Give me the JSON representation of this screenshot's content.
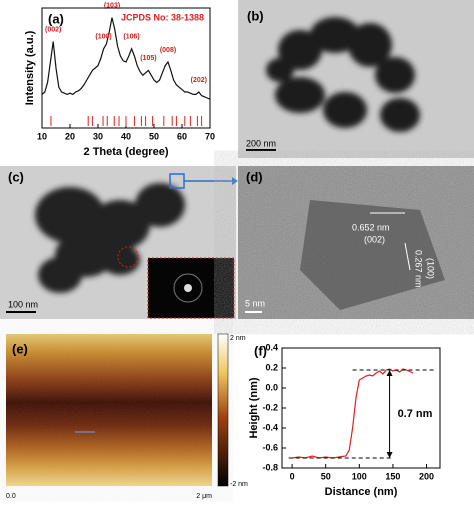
{
  "chart_data": [
    {
      "type": "line",
      "xlabel": "2 Theta (degree)",
      "ylabel": "Intensity (a.u.)",
      "annotation": "JCPDS No: 38-1388",
      "x": [
        10,
        11,
        12,
        13,
        14,
        15,
        16,
        17,
        18,
        19,
        20,
        21,
        22,
        23,
        24,
        25,
        26,
        27,
        28,
        29,
        30,
        31,
        32,
        33,
        34,
        35,
        36,
        37,
        38,
        39,
        40,
        41,
        42,
        43,
        44,
        45,
        46,
        47,
        48,
        49,
        50,
        51,
        52,
        53,
        54,
        55,
        56,
        57,
        58,
        59,
        60,
        61,
        62,
        63,
        64,
        65,
        66,
        67,
        68,
        69,
        70
      ],
      "series": [
        {
          "color": "#111111",
          "values": [
            28,
            30,
            38,
            55,
            72,
            50,
            34,
            30,
            29,
            28,
            29,
            28,
            30,
            31,
            33,
            36,
            40,
            44,
            48,
            50,
            52,
            58,
            66,
            70,
            80,
            92,
            82,
            68,
            60,
            56,
            55,
            60,
            66,
            60,
            52,
            47,
            44,
            46,
            48,
            44,
            40,
            38,
            40,
            46,
            52,
            55,
            48,
            40,
            36,
            34,
            32,
            30,
            30,
            29,
            28,
            28,
            30,
            27,
            26,
            25,
            24
          ]
        }
      ],
      "peak_labels": [
        {
          "label": "(002)",
          "x": 14
        },
        {
          "label": "(100)",
          "x": 32
        },
        {
          "label": "(103)",
          "x": 35
        },
        {
          "label": "(106)",
          "x": 42
        },
        {
          "label": "(105)",
          "x": 48
        },
        {
          "label": "(008)",
          "x": 55
        },
        {
          "label": "(202)",
          "x": 66
        }
      ],
      "reference_lines": [
        13.2,
        26.5,
        28,
        31.8,
        33.3,
        35.8,
        37.5,
        40,
        43,
        45.5,
        47,
        49.5,
        53.5,
        56.5,
        58,
        61,
        63,
        65.5,
        67
      ],
      "xlim": [
        10,
        70
      ],
      "xticks": [
        10,
        20,
        30,
        40,
        50,
        60,
        70
      ],
      "ylim": [
        0,
        100
      ]
    },
    {
      "type": "line",
      "xlabel": "Distance (nm)",
      "ylabel": "Height (nm)",
      "annotation": "0.7 nm",
      "x": [
        0,
        10,
        20,
        30,
        40,
        50,
        60,
        70,
        80,
        85,
        90,
        95,
        100,
        105,
        110,
        115,
        120,
        125,
        130,
        135,
        140,
        145,
        150,
        155,
        160,
        165,
        170,
        180
      ],
      "series": [
        {
          "color": "#e02020",
          "values": [
            -0.7,
            -0.69,
            -0.7,
            -0.68,
            -0.7,
            -0.69,
            -0.7,
            -0.69,
            -0.68,
            -0.62,
            -0.4,
            -0.1,
            0.08,
            0.1,
            0.12,
            0.13,
            0.12,
            0.15,
            0.17,
            0.14,
            0.18,
            0.19,
            0.17,
            0.18,
            0.16,
            0.19,
            0.18,
            0.15
          ]
        }
      ],
      "reference_lines": [
        0.18,
        -0.7
      ],
      "xlim": [
        -15,
        220
      ],
      "xticks": [
        0,
        50,
        100,
        150,
        200
      ],
      "ylim": [
        -0.8,
        0.4
      ],
      "yticks": [
        -0.8,
        -0.6,
        -0.4,
        -0.2,
        {
          "value": 0,
          "label": "0.0"
        },
        0.2,
        0.4
      ]
    }
  ],
  "panels": {
    "a": {
      "label": "(a)"
    },
    "b": {
      "label": "(b)",
      "scale": "200 nm"
    },
    "c": {
      "label": "(c)",
      "scale": "100 nm"
    },
    "d": {
      "label": "(d)",
      "spacing1": "0.652 nm",
      "plane1": "(002)",
      "spacing2": "0.267 nm",
      "plane2": "(100)",
      "scale": "5 nm"
    },
    "e": {
      "label": "(e)",
      "bar_top": "2 nm",
      "bar_bottom": "-2 nm",
      "x_start": "0.0",
      "x_end": "2 μm"
    },
    "f": {
      "label": "(f)"
    }
  }
}
